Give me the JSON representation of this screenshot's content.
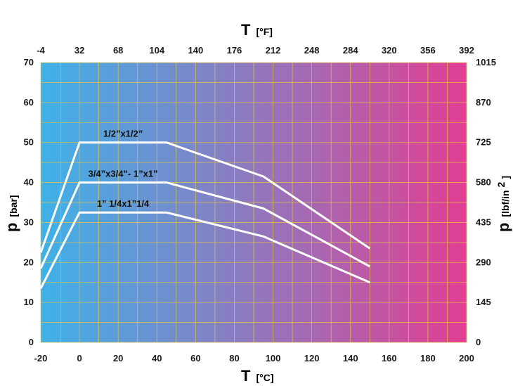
{
  "chart_data": {
    "type": "line",
    "x_bottom": {
      "letter": "T",
      "unit": "[°C]",
      "ticks": [
        "-20",
        "0",
        "20",
        "40",
        "60",
        "80",
        "100",
        "120",
        "140",
        "160",
        "180",
        "200"
      ],
      "range": [
        -20,
        200
      ]
    },
    "x_top": {
      "letter": "T",
      "unit": "[°F]",
      "ticks": [
        "-4",
        "32",
        "68",
        "104",
        "140",
        "176",
        "212",
        "248",
        "284",
        "320",
        "356",
        "392"
      ]
    },
    "y_left": {
      "letter": "p",
      "unit": "[bar]",
      "ticks": [
        "0",
        "10",
        "20",
        "30",
        "40",
        "50",
        "60",
        "70"
      ],
      "range": [
        0,
        70
      ]
    },
    "y_right": {
      "letter": "p",
      "unit_base": "[lbf/in",
      "unit_sup": "2",
      "unit_end": "]",
      "ticks": [
        "0",
        "145",
        "290",
        "435",
        "580",
        "725",
        "870",
        "1015"
      ]
    },
    "grid": true,
    "background_gradient": [
      "#3fb1e8",
      "#e23e93"
    ],
    "line_color": "#ffffff",
    "series": [
      {
        "name": "1/2”x1/2”",
        "points": [
          [
            -20,
            22.5
          ],
          [
            0,
            50
          ],
          [
            45,
            50
          ],
          [
            95,
            41.5
          ],
          [
            150,
            23.5
          ]
        ]
      },
      {
        "name": "3/4”x3/4”- 1”x1”",
        "points": [
          [
            -20,
            18.5
          ],
          [
            0,
            40
          ],
          [
            45,
            40
          ],
          [
            95,
            33.5
          ],
          [
            150,
            19
          ]
        ]
      },
      {
        "name": "1” 1/4x1”1/4",
        "points": [
          [
            -20,
            13.5
          ],
          [
            0,
            32.5
          ],
          [
            45,
            32.5
          ],
          [
            95,
            26.5
          ],
          [
            150,
            15
          ]
        ]
      }
    ]
  }
}
